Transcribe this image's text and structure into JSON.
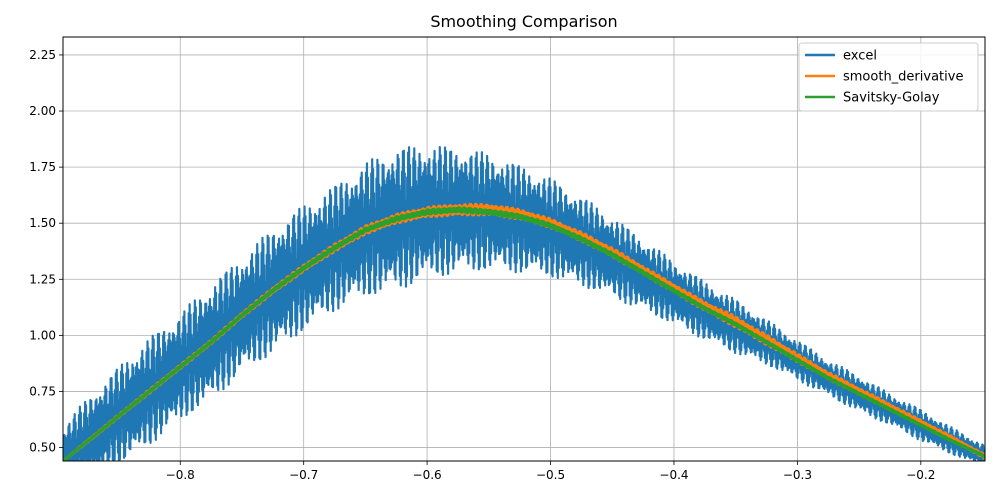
{
  "chart_data": {
    "type": "line",
    "title": "Smoothing Comparison",
    "xlabel": "",
    "ylabel": "",
    "xlim": [
      -0.895,
      -0.148
    ],
    "ylim": [
      0.44,
      2.33
    ],
    "grid": true,
    "legend_position": "top-right",
    "x_ticks": [
      {
        "value": -0.8,
        "label": "−0.8"
      },
      {
        "value": -0.7,
        "label": "−0.7"
      },
      {
        "value": -0.6,
        "label": "−0.6"
      },
      {
        "value": -0.5,
        "label": "−0.5"
      },
      {
        "value": -0.4,
        "label": "−0.4"
      },
      {
        "value": -0.3,
        "label": "−0.3"
      },
      {
        "value": -0.2,
        "label": "−0.2"
      }
    ],
    "y_ticks": [
      {
        "value": 0.5,
        "label": "0.50"
      },
      {
        "value": 0.75,
        "label": "0.75"
      },
      {
        "value": 1.0,
        "label": "1.00"
      },
      {
        "value": 1.25,
        "label": "1.25"
      },
      {
        "value": 1.5,
        "label": "1.50"
      },
      {
        "value": 1.75,
        "label": "1.75"
      },
      {
        "value": 2.0,
        "label": "2.00"
      },
      {
        "value": 2.25,
        "label": "2.25"
      }
    ],
    "x": [
      -0.895,
      -0.87,
      -0.85,
      -0.825,
      -0.8,
      -0.775,
      -0.75,
      -0.725,
      -0.7,
      -0.675,
      -0.65,
      -0.625,
      -0.6,
      -0.575,
      -0.55,
      -0.525,
      -0.5,
      -0.475,
      -0.45,
      -0.425,
      -0.4,
      -0.375,
      -0.35,
      -0.325,
      -0.3,
      -0.275,
      -0.25,
      -0.225,
      -0.2,
      -0.175,
      -0.148
    ],
    "series": [
      {
        "name": "excel",
        "color": "#1f77b4",
        "values": [
          0.44,
          0.55,
          0.64,
          0.75,
          0.86,
          0.97,
          1.09,
          1.2,
          1.3,
          1.39,
          1.47,
          1.52,
          1.55,
          1.56,
          1.55,
          1.52,
          1.48,
          1.42,
          1.35,
          1.27,
          1.19,
          1.11,
          1.04,
          0.97,
          0.89,
          0.81,
          0.74,
          0.67,
          0.6,
          0.53,
          0.46
        ],
        "amplitude": [
          0.16,
          0.2,
          0.22,
          0.24,
          0.24,
          0.26,
          0.26,
          0.28,
          0.28,
          0.28,
          0.3,
          0.32,
          0.3,
          0.28,
          0.26,
          0.24,
          0.22,
          0.2,
          0.18,
          0.16,
          0.14,
          0.13,
          0.12,
          0.1,
          0.09,
          0.08,
          0.08,
          0.07,
          0.07,
          0.06,
          0.05
        ]
      },
      {
        "name": "smooth_derivative",
        "color": "#ff7f0e",
        "values": [
          0.44,
          0.55,
          0.64,
          0.75,
          0.86,
          0.97,
          1.09,
          1.2,
          1.3,
          1.39,
          1.47,
          1.52,
          1.55,
          1.56,
          1.56,
          1.54,
          1.5,
          1.44,
          1.37,
          1.29,
          1.21,
          1.13,
          1.06,
          0.98,
          0.9,
          0.82,
          0.75,
          0.68,
          0.61,
          0.54,
          0.46
        ],
        "amplitude": [
          0.0,
          0.005,
          0.006,
          0.008,
          0.008,
          0.009,
          0.01,
          0.012,
          0.014,
          0.016,
          0.018,
          0.02,
          0.022,
          0.024,
          0.024,
          0.022,
          0.02,
          0.02,
          0.02,
          0.018,
          0.018,
          0.02,
          0.024,
          0.022,
          0.018,
          0.016,
          0.015,
          0.014,
          0.012,
          0.01,
          0.008
        ]
      },
      {
        "name": "Savitsky-Golay",
        "color": "#2ca02c",
        "values": [
          0.44,
          0.55,
          0.64,
          0.75,
          0.86,
          0.97,
          1.09,
          1.2,
          1.3,
          1.39,
          1.47,
          1.52,
          1.55,
          1.56,
          1.55,
          1.53,
          1.49,
          1.43,
          1.36,
          1.28,
          1.2,
          1.12,
          1.05,
          0.97,
          0.89,
          0.81,
          0.74,
          0.67,
          0.6,
          0.53,
          0.46
        ],
        "amplitude": [
          0.0,
          0.002,
          0.003,
          0.004,
          0.004,
          0.005,
          0.005,
          0.006,
          0.007,
          0.008,
          0.008,
          0.009,
          0.01,
          0.01,
          0.01,
          0.009,
          0.008,
          0.008,
          0.008,
          0.007,
          0.006,
          0.006,
          0.006,
          0.005,
          0.005,
          0.004,
          0.004,
          0.004,
          0.003,
          0.003,
          0.002
        ]
      }
    ]
  }
}
